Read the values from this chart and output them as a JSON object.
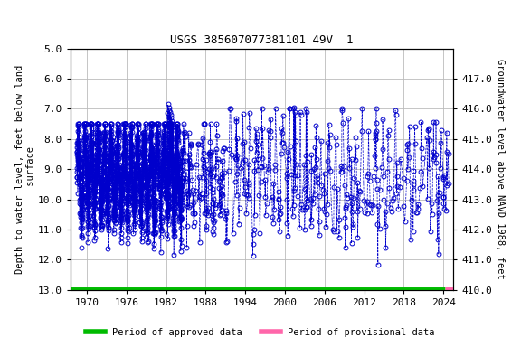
{
  "title": "USGS 385607077381101 49V  1",
  "title_fontsize": 9,
  "ylabel_left": "Depth to water level, feet below land\n surface",
  "ylabel_right": "Groundwater level above NAVD 1988, feet",
  "ylim_left": [
    13.0,
    5.0
  ],
  "ylim_right": [
    410.0,
    418.0
  ],
  "yticks_left": [
    5.0,
    6.0,
    7.0,
    8.0,
    9.0,
    10.0,
    11.0,
    12.0,
    13.0
  ],
  "yticks_right": [
    410.0,
    411.0,
    412.0,
    413.0,
    414.0,
    415.0,
    416.0,
    417.0
  ],
  "xlim": [
    1967.5,
    2025.5
  ],
  "xticks": [
    1970,
    1976,
    1982,
    1988,
    1994,
    2000,
    2006,
    2012,
    2018,
    2024
  ],
  "data_color": "#0000cc",
  "line_style": "--",
  "marker": "o",
  "marker_size": 3.5,
  "grid_color": "#bbbbbb",
  "approved_color": "#00bb00",
  "provisional_color": "#ff66aa",
  "legend_approved": "Period of approved data",
  "legend_provisional": "Period of provisional data",
  "background_color": "#ffffff",
  "font_family": "monospace",
  "tick_fontsize": 8,
  "label_fontsize": 7.5
}
